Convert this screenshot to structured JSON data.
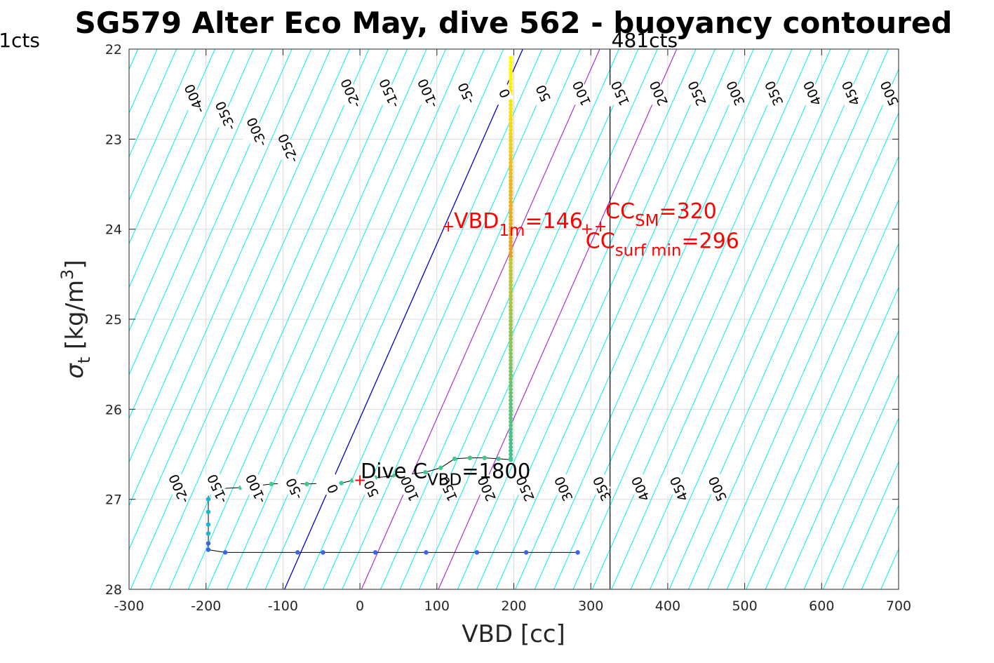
{
  "chart_data": {
    "type": "scatter",
    "title": "SG579 Alter Eco May, dive 562 - buoyancy contoured",
    "xlabel": "VBD [cc]",
    "ylabel_main": "σ",
    "ylabel_sub": "t",
    "ylabel_unit": "[kg/m",
    "ylabel_exp": "3",
    "ylabel_close": "]",
    "xlim": [
      -300,
      700
    ],
    "ylim": [
      22,
      28
    ],
    "y_reversed": true,
    "grid": true,
    "xticks": [
      -300,
      -200,
      -100,
      0,
      100,
      200,
      300,
      400,
      500,
      600,
      700
    ],
    "yticks": [
      22,
      23,
      24,
      25,
      26,
      27,
      28
    ],
    "contour_values_top": [
      -400,
      -350,
      -300,
      -250,
      -200,
      -150,
      -100,
      -50,
      0,
      50,
      100,
      150,
      200,
      250,
      300,
      350,
      400,
      450,
      500
    ],
    "contour_values_bottom": [
      -200,
      -150,
      -100,
      -50,
      0,
      50,
      100,
      150,
      200,
      250,
      300,
      350,
      400,
      450,
      500
    ],
    "zero_contour": 0,
    "highlight_contours": [
      100,
      200
    ],
    "colors": {
      "contour": "#00f0f0",
      "zero_contour": "#0000cc",
      "highlight_contour": "#a020e0",
      "marker": "#ff0000",
      "limit_line": "#000000"
    },
    "left_limit_label": "1cts",
    "right_limit_label": "481cts",
    "right_limit_x": 325,
    "vbd_1m": {
      "prefix": "VBD",
      "sub": "1m",
      "suffix": "=146",
      "x": 145,
      "y": 23.97
    },
    "cc_sm": {
      "prefix": "CC",
      "sub": "SM",
      "suffix": "=320",
      "x": 320,
      "y": 23.97
    },
    "cc_surf_min": {
      "prefix": "CC",
      "sub": "surf min",
      "suffix": "=296",
      "x": 296,
      "y": 24.0
    },
    "dive_c_vbd": {
      "prefix": "Dive C",
      "sub": "VBD",
      "suffix": "=1800",
      "x": 0,
      "y": 26.78
    },
    "track_points": [
      {
        "x": 283,
        "y": 27.59
      },
      {
        "x": 216,
        "y": 27.59
      },
      {
        "x": 152,
        "y": 27.59
      },
      {
        "x": 86,
        "y": 27.59
      },
      {
        "x": 20,
        "y": 27.59
      },
      {
        "x": -48,
        "y": 27.59
      },
      {
        "x": -81,
        "y": 27.59
      },
      {
        "x": -175,
        "y": 27.59
      },
      {
        "x": -197,
        "y": 27.56
      },
      {
        "x": -197,
        "y": 27.49
      },
      {
        "x": -197,
        "y": 27.38
      },
      {
        "x": -197,
        "y": 27.28
      },
      {
        "x": -197,
        "y": 27.14
      },
      {
        "x": -197,
        "y": 27.0
      },
      {
        "x": -197,
        "y": 26.93
      },
      {
        "x": -197,
        "y": 26.88
      },
      {
        "x": -193,
        "y": 26.88
      },
      {
        "x": -180,
        "y": 26.88
      },
      {
        "x": -155,
        "y": 26.87
      },
      {
        "x": -134,
        "y": 26.85
      },
      {
        "x": -115,
        "y": 26.83
      },
      {
        "x": -92,
        "y": 26.82
      },
      {
        "x": -69,
        "y": 26.83
      },
      {
        "x": -46,
        "y": 26.82
      },
      {
        "x": -24,
        "y": 26.82
      },
      {
        "x": -10,
        "y": 26.79
      },
      {
        "x": 0,
        "y": 26.76
      },
      {
        "x": 20,
        "y": 26.76
      },
      {
        "x": 45,
        "y": 26.74
      },
      {
        "x": 65,
        "y": 26.72
      },
      {
        "x": 85,
        "y": 26.7
      },
      {
        "x": 105,
        "y": 26.65
      },
      {
        "x": 123,
        "y": 26.55
      },
      {
        "x": 143,
        "y": 26.54
      },
      {
        "x": 162,
        "y": 26.54
      },
      {
        "x": 180,
        "y": 26.55
      },
      {
        "x": 196,
        "y": 26.56
      }
    ],
    "vertical_series": {
      "x": 196,
      "y_top": 22.1,
      "y_bottom": 26.55
    }
  }
}
